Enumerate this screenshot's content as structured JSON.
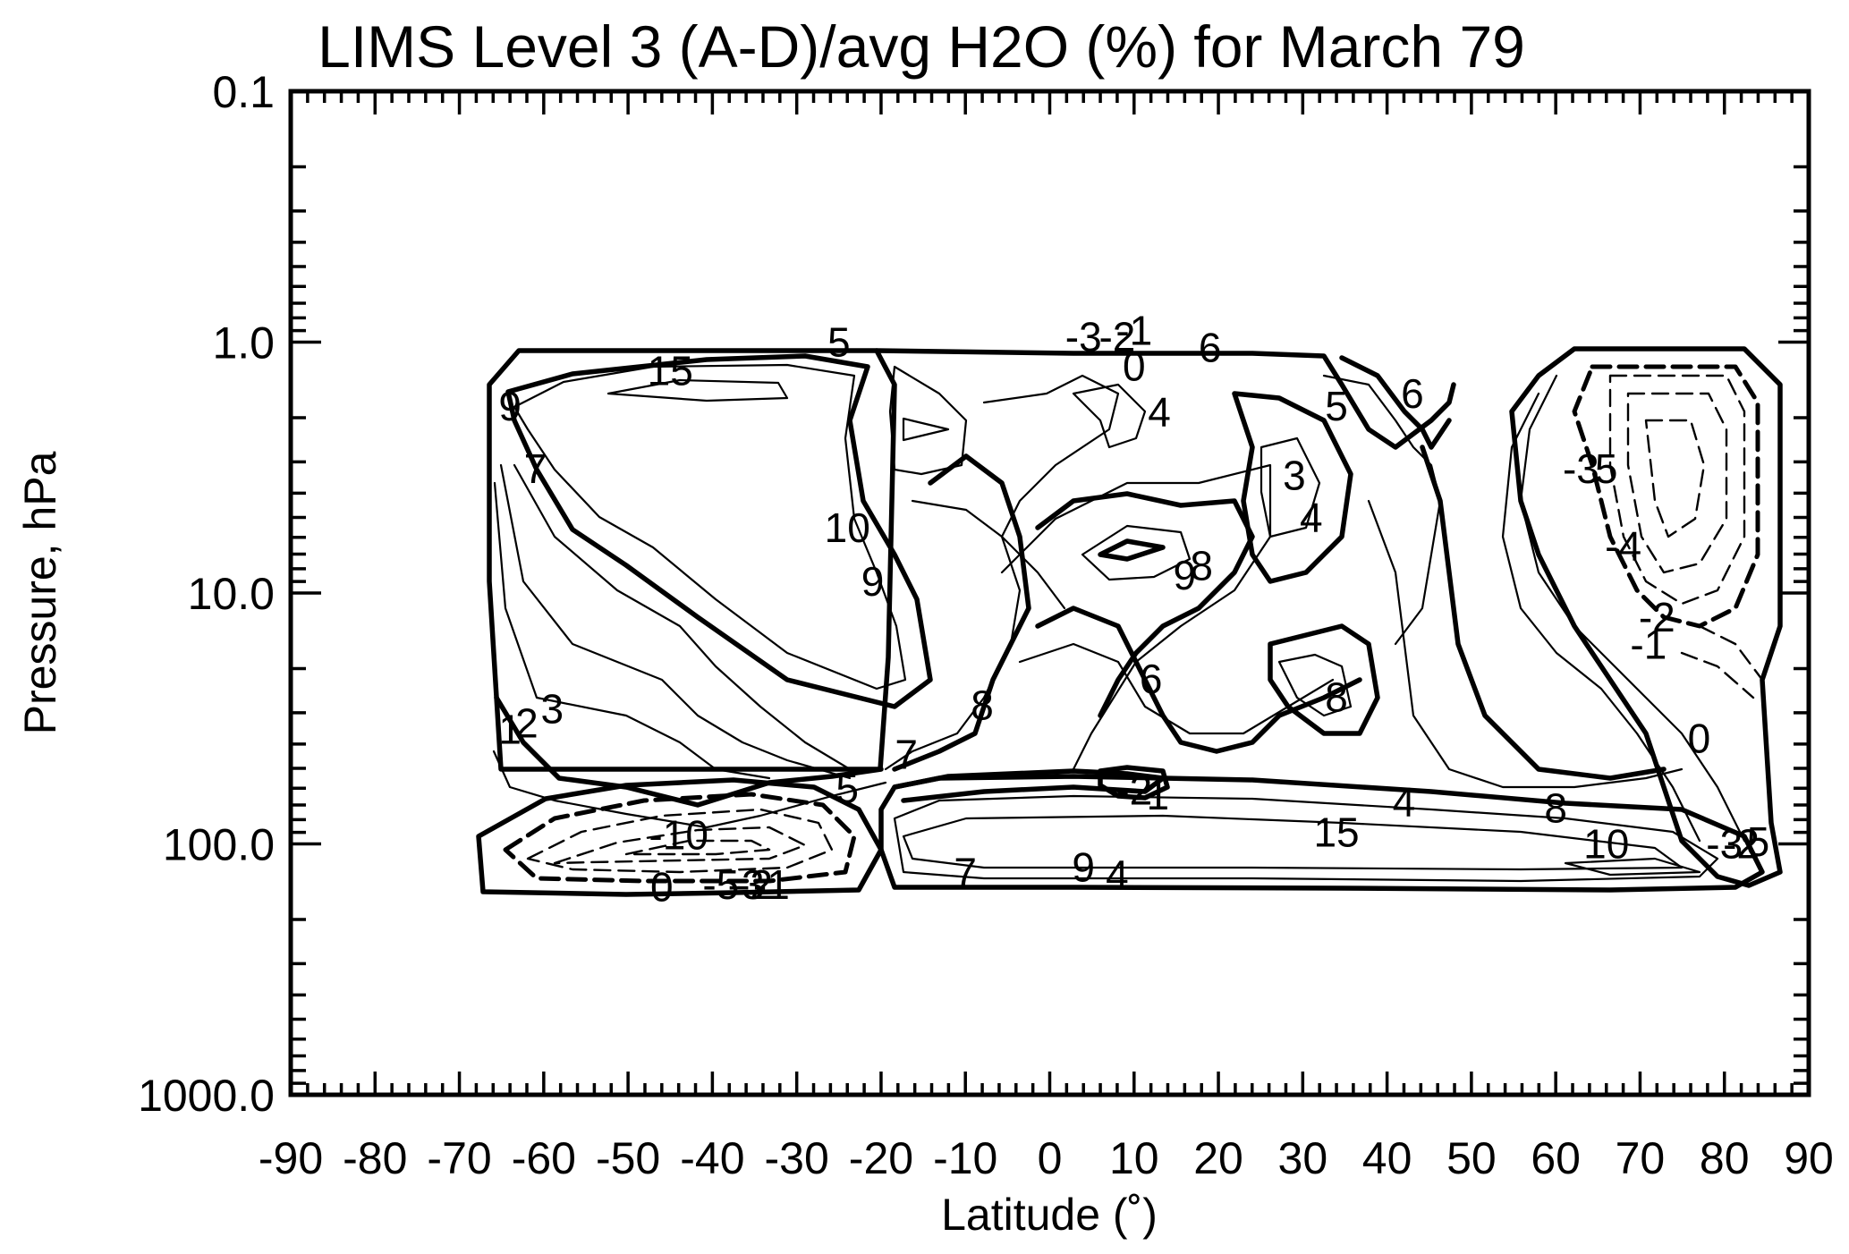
{
  "chart_data": {
    "type": "contour",
    "title": "LIMS Level 3 (A-D)/avg H2O (%) for March 79",
    "xlabel": "Latitude (˚)",
    "ylabel": "Pressure, hPa",
    "xlim": [
      -90,
      90
    ],
    "ylim": [
      1000.0,
      0.1
    ],
    "yscale": "log",
    "x_ticks": [
      "-90",
      "-80",
      "-70",
      "-60",
      "-50",
      "-40",
      "-30",
      "-20",
      "-10",
      "0",
      "10",
      "20",
      "30",
      "40",
      "50",
      "60",
      "70",
      "80",
      "90"
    ],
    "y_ticks": [
      "0.1",
      "1.0",
      "10.0",
      "100.0",
      "1000.0"
    ],
    "contour_labels": [
      {
        "text": "15",
        "lat": -45,
        "p": 1.3
      },
      {
        "text": "5",
        "lat": -25,
        "p": 1.0
      },
      {
        "text": "-3",
        "lat": 4,
        "p": 0.95
      },
      {
        "text": "-2",
        "lat": 8,
        "p": 0.95
      },
      {
        "text": "-1",
        "lat": 10,
        "p": 0.9
      },
      {
        "text": "0",
        "lat": 10,
        "p": 1.25
      },
      {
        "text": "6",
        "lat": 19,
        "p": 1.05
      },
      {
        "text": "4",
        "lat": 13,
        "p": 1.9
      },
      {
        "text": "5",
        "lat": 34,
        "p": 1.8
      },
      {
        "text": "6",
        "lat": 43,
        "p": 1.6
      },
      {
        "text": "9",
        "lat": -64,
        "p": 1.8
      },
      {
        "text": "7",
        "lat": -61,
        "p": 3.2
      },
      {
        "text": "10",
        "lat": -24,
        "p": 5.5
      },
      {
        "text": "9",
        "lat": -21,
        "p": 9.0
      },
      {
        "text": "3",
        "lat": 29,
        "p": 3.4
      },
      {
        "text": "4",
        "lat": 31,
        "p": 5.0
      },
      {
        "text": "8",
        "lat": 18,
        "p": 7.8
      },
      {
        "text": "9",
        "lat": 16,
        "p": 8.5
      },
      {
        "text": "6",
        "lat": 12,
        "p": 22.0
      },
      {
        "text": "8",
        "lat": -8,
        "p": 28.0
      },
      {
        "text": "8",
        "lat": 34,
        "p": 26.0
      },
      {
        "text": "7",
        "lat": -17,
        "p": 44.0
      },
      {
        "text": "5",
        "lat": -24,
        "p": 60.0
      },
      {
        "text": "3",
        "lat": -59,
        "p": 29.0
      },
      {
        "text": "2",
        "lat": -62,
        "p": 33.0
      },
      {
        "text": "1",
        "lat": -64,
        "p": 35.0
      },
      {
        "text": "-3",
        "lat": 63,
        "p": 3.2
      },
      {
        "text": "5",
        "lat": 66,
        "p": 3.2
      },
      {
        "text": "-4",
        "lat": 68,
        "p": 6.5
      },
      {
        "text": "-2",
        "lat": 72,
        "p": 12.5
      },
      {
        "text": "-1",
        "lat": 71,
        "p": 16.0
      },
      {
        "text": "0",
        "lat": 77,
        "p": 38.0
      },
      {
        "text": "4",
        "lat": 42,
        "p": 68.0
      },
      {
        "text": "8",
        "lat": 60,
        "p": 72.0
      },
      {
        "text": "15",
        "lat": 34,
        "p": 90.0
      },
      {
        "text": "10",
        "lat": 66,
        "p": 100.0
      },
      {
        "text": "-10",
        "lat": -44,
        "p": 92.0
      },
      {
        "text": "0",
        "lat": -46,
        "p": 148.0
      },
      {
        "text": "-5",
        "lat": -39,
        "p": 145.0
      },
      {
        "text": "-3",
        "lat": -36,
        "p": 145.0
      },
      {
        "text": "-2",
        "lat": -35,
        "p": 145.0
      },
      {
        "text": "-1",
        "lat": -33,
        "p": 145.0
      },
      {
        "text": "7",
        "lat": -10,
        "p": 130.0
      },
      {
        "text": "9",
        "lat": 4,
        "p": 124.0
      },
      {
        "text": "4",
        "lat": 8,
        "p": 133.0
      },
      {
        "text": "-2",
        "lat": 10,
        "p": 61.0
      },
      {
        "text": "-1",
        "lat": 12,
        "p": 64.0
      },
      {
        "text": "-3",
        "lat": 80,
        "p": 100.0
      },
      {
        "text": "-2",
        "lat": 82,
        "p": 100.0
      },
      {
        "text": "5",
        "lat": 84,
        "p": 98.0
      }
    ]
  }
}
